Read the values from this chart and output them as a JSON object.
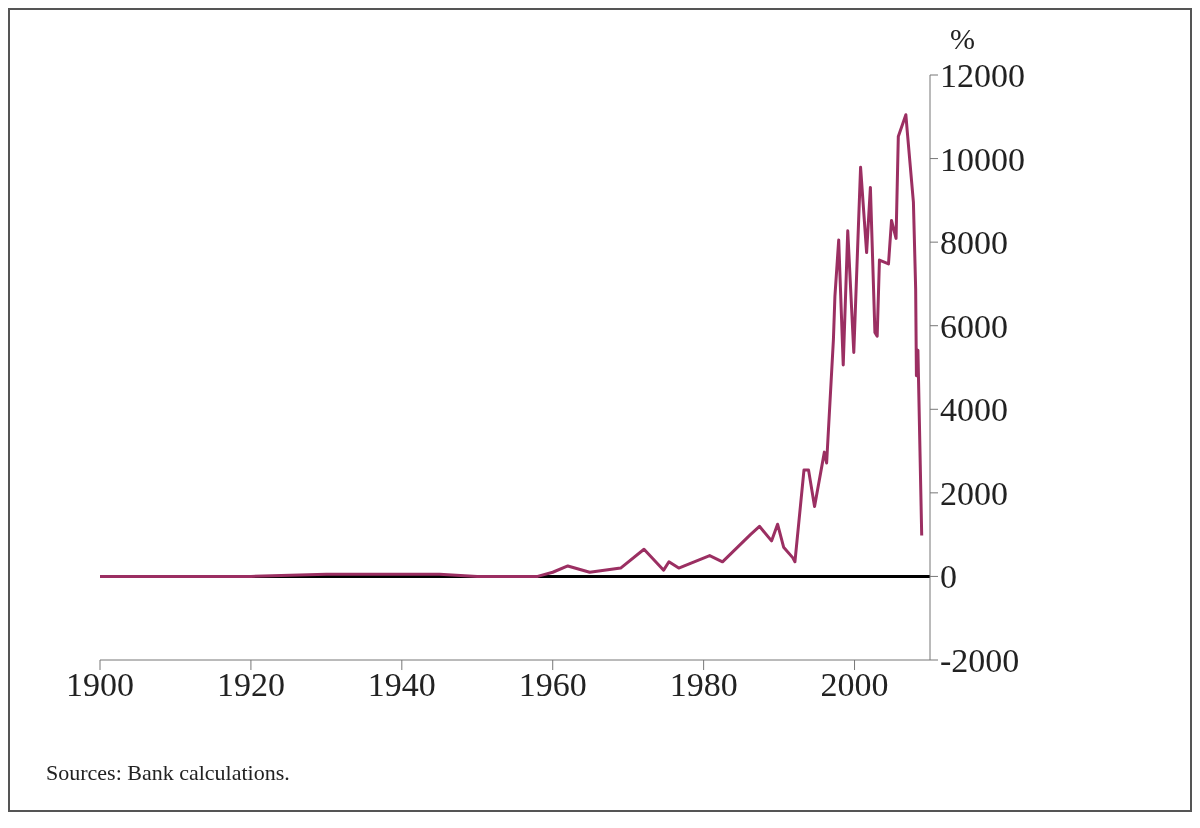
{
  "chart_data": {
    "type": "line",
    "ylabel": "%",
    "x": [
      1900,
      1910,
      1920,
      1930,
      1938,
      1945,
      1950,
      1958,
      1960,
      1962,
      1964.9,
      1969,
      1972.1,
      1974.7,
      1975.4,
      1976.7,
      1980.8,
      1982.5,
      1986.2,
      1987.4,
      1989,
      1989.8,
      1990.6,
      1991.8,
      1992.1,
      1993.3,
      1993.9,
      1994.7,
      1996,
      1996.3,
      1997.2,
      1997.4,
      1997.9,
      1998.5,
      1999.1,
      1999.9,
      2000.8,
      2001.6,
      2002.1,
      2002.7,
      2003,
      2003.3,
      2004.5,
      2004.9,
      2005.5,
      2005.8,
      2006.8,
      2007,
      2007.8,
      2008.1,
      2008.2,
      2008.4,
      2008.9
    ],
    "series": [
      {
        "color": "#9b2f62",
        "values": [
          0,
          0,
          0,
          50,
          50,
          50,
          0,
          0,
          100,
          250,
          100,
          200,
          650,
          150,
          350,
          200,
          500,
          350,
          1000,
          1200,
          850,
          1250,
          700,
          450,
          350,
          2550,
          2550,
          1675,
          2975,
          2715,
          5670,
          6710,
          8050,
          5060,
          8270,
          5360,
          9790,
          7750,
          9310,
          5840,
          5750,
          7570,
          7480,
          8520,
          8090,
          10530,
          11050,
          10620,
          8960,
          6880,
          4800,
          5410,
          980
        ]
      }
    ],
    "xlim": [
      1900,
      2010
    ],
    "xticks": [
      1900,
      1920,
      1940,
      1960,
      1980,
      2000
    ],
    "ylim": [
      -2000,
      12000
    ],
    "yticks": [
      -2000,
      0,
      2000,
      4000,
      6000,
      8000,
      10000,
      12000
    ],
    "grid": false,
    "legend": false,
    "marker": "none",
    "line_style": "solid",
    "ref_lines": [
      {
        "axis": "y",
        "value": 0,
        "color": "#000000"
      }
    ],
    "annotations": [
      "Sources: Bank calculations."
    ]
  }
}
